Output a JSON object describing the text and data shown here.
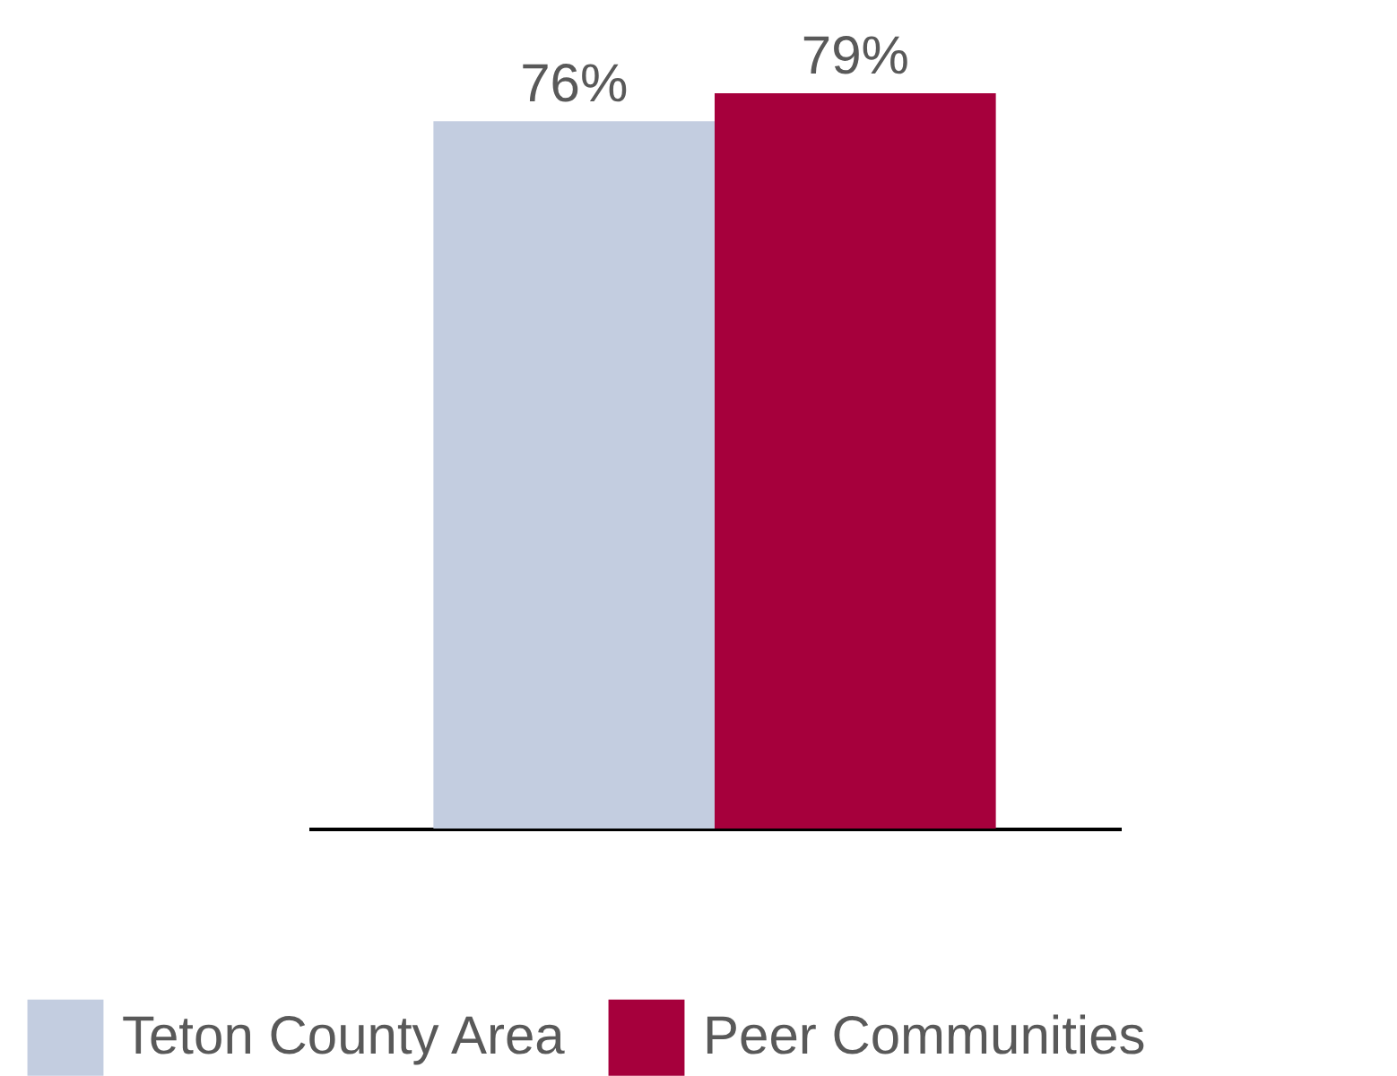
{
  "chart_data": {
    "type": "bar",
    "categories": [
      null
    ],
    "legend": "bottom",
    "series": [
      {
        "name": "Teton County Area",
        "color": "#c3cde0",
        "values": [
          76
        ],
        "value_labels": [
          "76%"
        ]
      },
      {
        "name": "Peer Communities",
        "color": "#a6003c",
        "values": [
          79
        ],
        "value_labels": [
          "79%"
        ]
      }
    ]
  }
}
